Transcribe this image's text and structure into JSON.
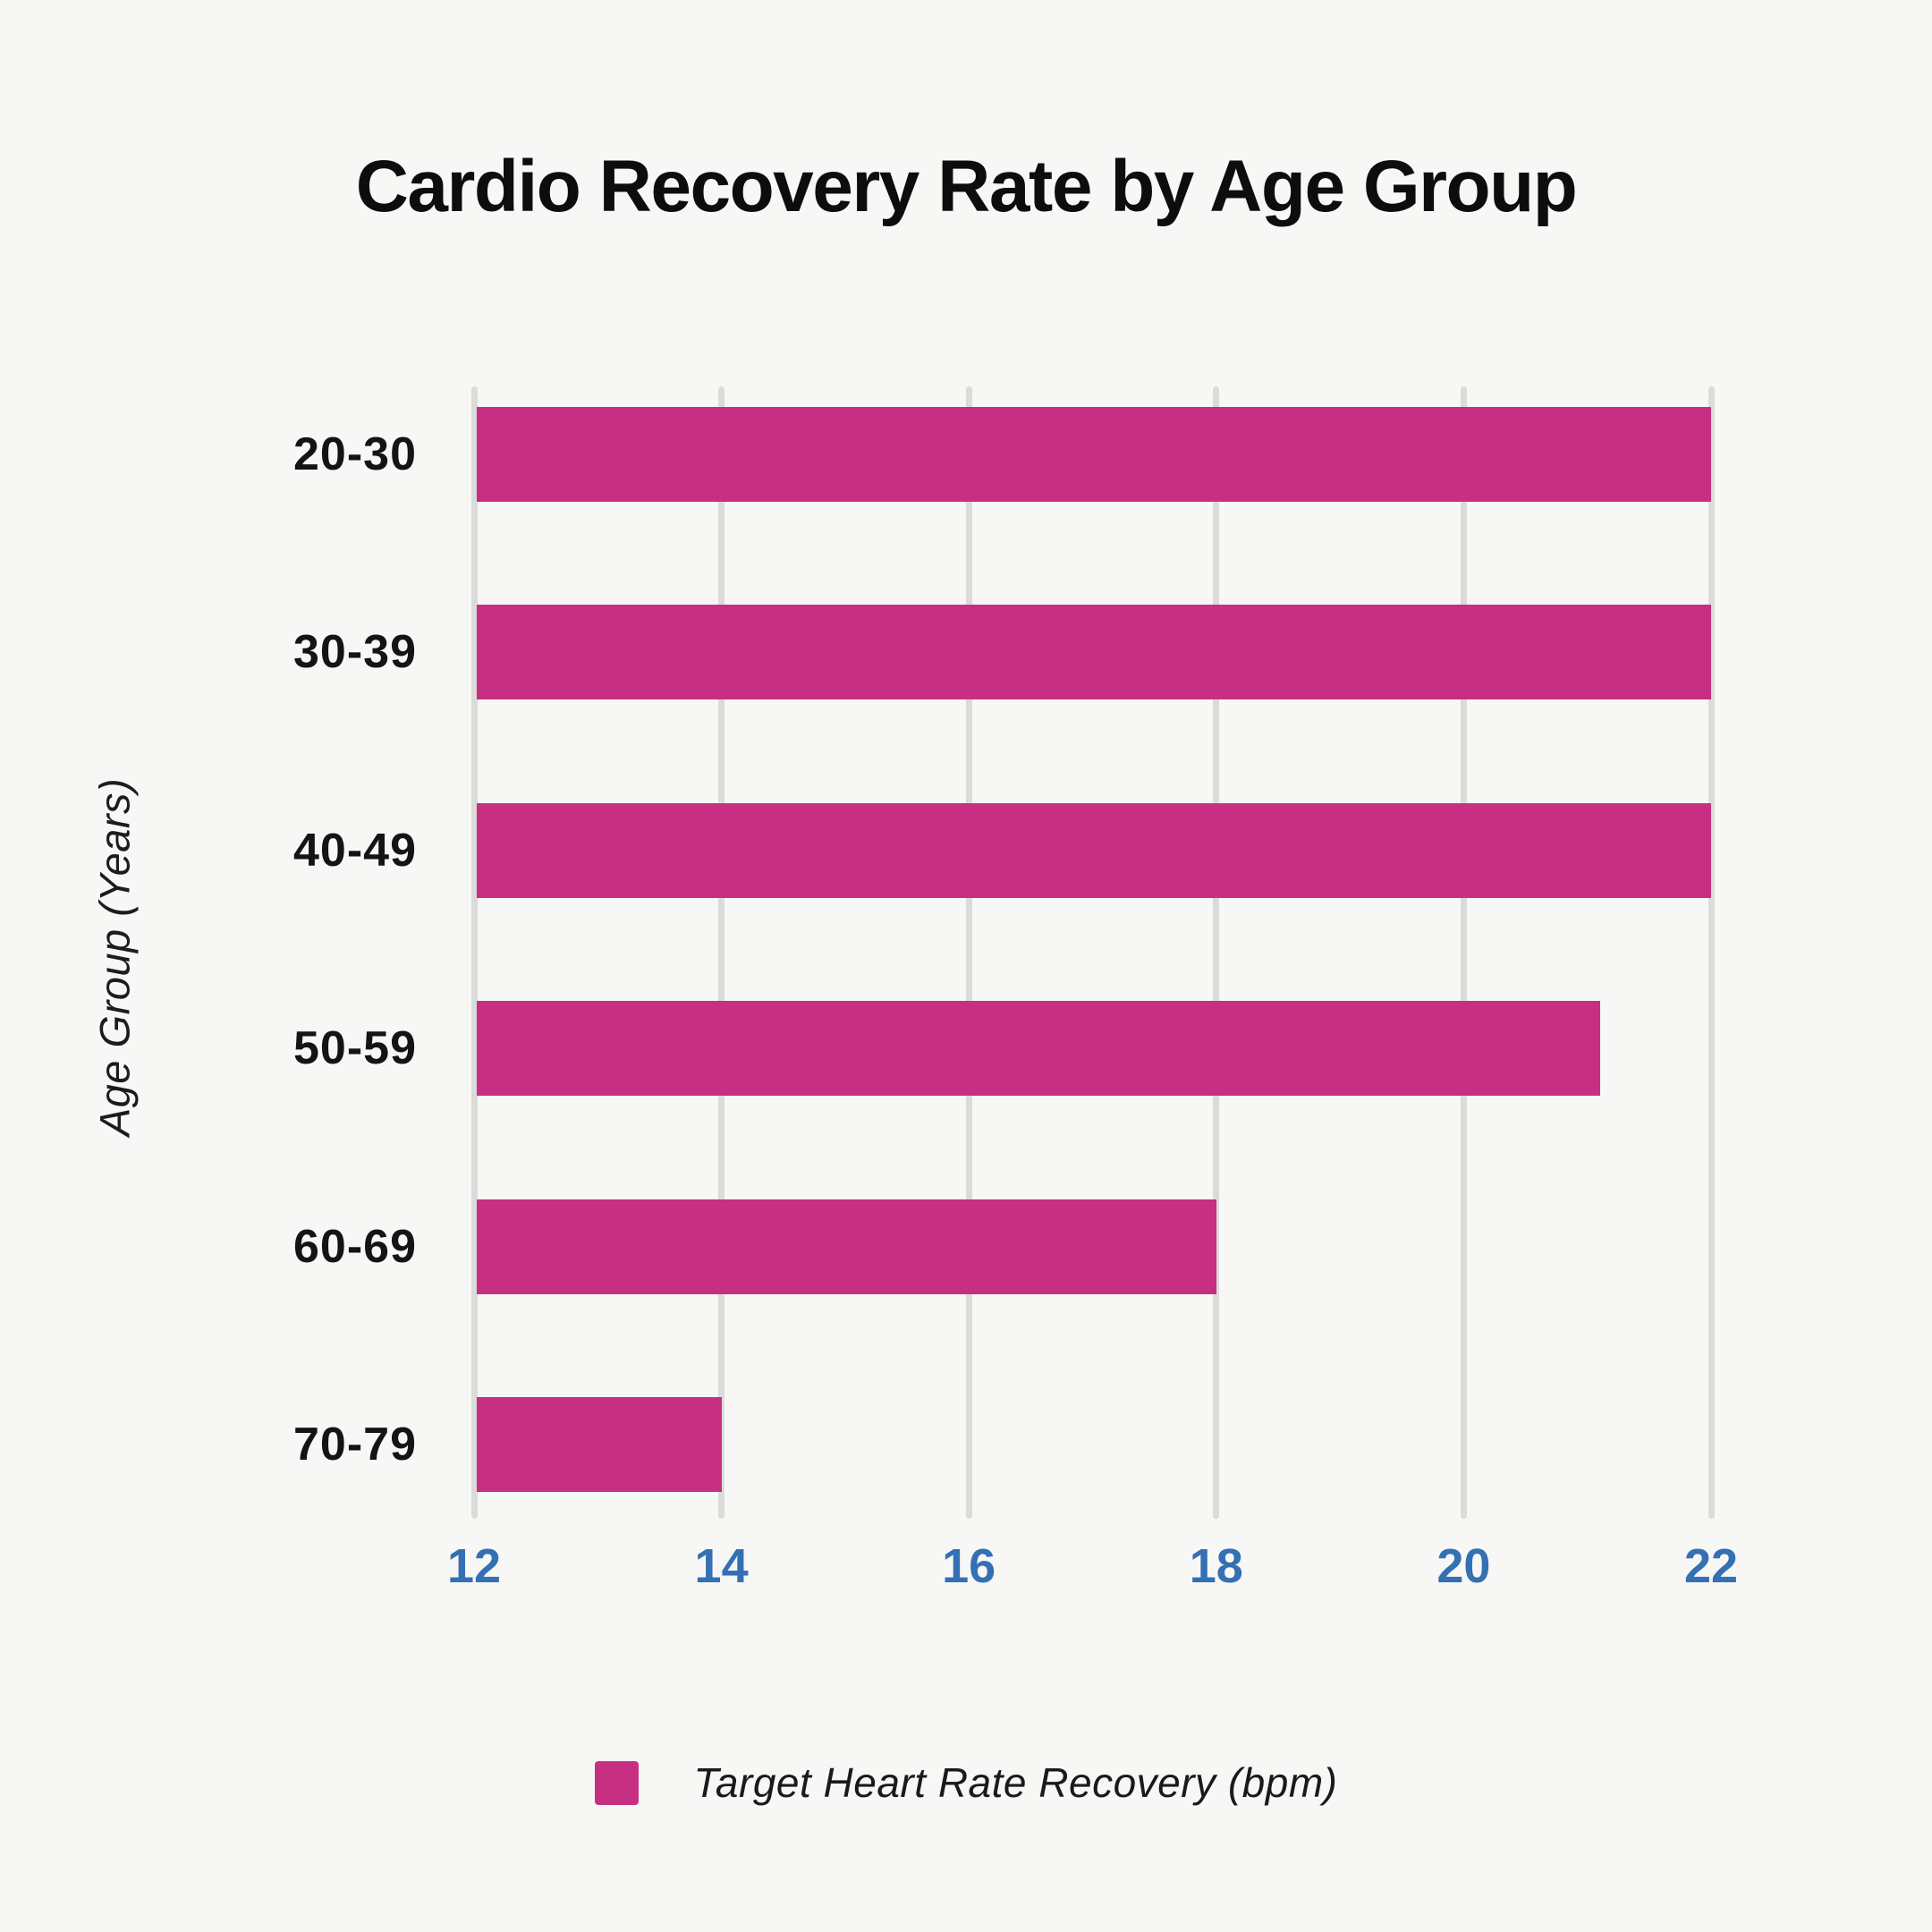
{
  "chart_data": {
    "type": "bar",
    "orientation": "horizontal",
    "title": "Cardio Recovery Rate by Age Group",
    "xlabel": "",
    "ylabel": "Age Group (Years)",
    "categories": [
      "20-30",
      "30-39",
      "40-49",
      "50-59",
      "60-69",
      "70-79"
    ],
    "series": [
      {
        "name": "Target Heart Rate Recovery (bpm)",
        "values": [
          22,
          22,
          22,
          21.1,
          18,
          14
        ]
      }
    ],
    "xlim": [
      12,
      22
    ],
    "x_ticks": [
      12,
      14,
      16,
      18,
      20,
      22
    ],
    "grid": true,
    "legend_position": "bottom"
  },
  "colors": {
    "bar": "#C62F82",
    "tick_label": "#3370B4",
    "gridline": "#DBDBD9",
    "background": "#F7F7F5",
    "text": "#141414"
  }
}
